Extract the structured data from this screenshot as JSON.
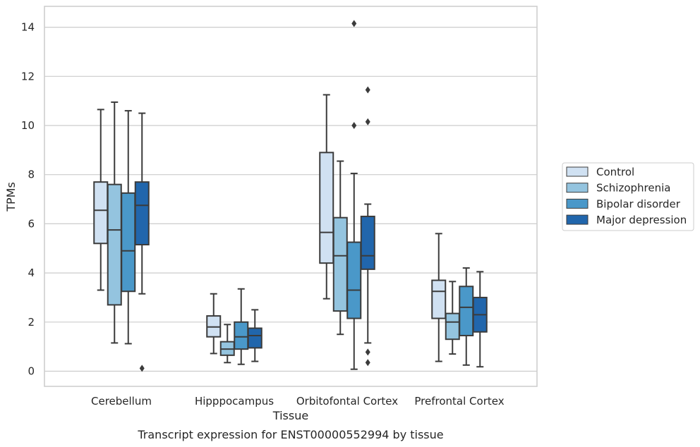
{
  "chart_data": {
    "type": "boxplot",
    "xlabel": "Tissue",
    "ylabel": "TPMs",
    "caption": "Transcript expression for ENST00000552994 by tissue",
    "ylim": [
      -0.6,
      14.8
    ],
    "yticks": [
      0,
      2,
      4,
      6,
      8,
      10,
      12,
      14
    ],
    "grid": true,
    "legend_position": "right",
    "categories": [
      "Cerebellum",
      "Hipppocampus",
      "Orbitofontal Cortex",
      "Prefrontal Cortex"
    ],
    "series": [
      {
        "name": "Control",
        "color": "#d0e1f2",
        "boxes": [
          {
            "whislo": 3.3,
            "q1": 5.2,
            "med": 6.55,
            "q3": 7.7,
            "whishi": 10.65,
            "fliers": []
          },
          {
            "whislo": 0.72,
            "q1": 1.4,
            "med": 1.8,
            "q3": 2.25,
            "whishi": 3.15,
            "fliers": []
          },
          {
            "whislo": 2.95,
            "q1": 4.4,
            "med": 5.65,
            "q3": 8.9,
            "whishi": 11.25,
            "fliers": []
          },
          {
            "whislo": 0.4,
            "q1": 2.15,
            "med": 3.25,
            "q3": 3.7,
            "whishi": 5.6,
            "fliers": []
          }
        ]
      },
      {
        "name": "Schizophrenia",
        "color": "#94c4df",
        "boxes": [
          {
            "whislo": 1.15,
            "q1": 2.7,
            "med": 5.75,
            "q3": 7.6,
            "whishi": 10.95,
            "fliers": []
          },
          {
            "whislo": 0.35,
            "q1": 0.65,
            "med": 0.9,
            "q3": 1.2,
            "whishi": 1.9,
            "fliers": []
          },
          {
            "whislo": 1.5,
            "q1": 2.45,
            "med": 4.7,
            "q3": 6.25,
            "whishi": 8.55,
            "fliers": []
          },
          {
            "whislo": 0.7,
            "q1": 1.3,
            "med": 2.0,
            "q3": 2.35,
            "whishi": 3.65,
            "fliers": []
          }
        ]
      },
      {
        "name": "Bipolar disorder",
        "color": "#4a98c9",
        "boxes": [
          {
            "whislo": 1.12,
            "q1": 3.25,
            "med": 4.9,
            "q3": 7.25,
            "whishi": 10.6,
            "fliers": []
          },
          {
            "whislo": 0.28,
            "q1": 0.9,
            "med": 1.4,
            "q3": 2.0,
            "whishi": 3.35,
            "fliers": []
          },
          {
            "whislo": 0.08,
            "q1": 2.15,
            "med": 3.3,
            "q3": 5.25,
            "whishi": 8.05,
            "fliers": [
              10.0,
              14.15
            ]
          },
          {
            "whislo": 0.25,
            "q1": 1.45,
            "med": 2.6,
            "q3": 3.45,
            "whishi": 4.2,
            "fliers": []
          }
        ]
      },
      {
        "name": "Major depression",
        "color": "#2166ac",
        "boxes": [
          {
            "whislo": 3.15,
            "q1": 5.15,
            "med": 6.75,
            "q3": 7.7,
            "whishi": 10.5,
            "fliers": [
              0.12
            ]
          },
          {
            "whislo": 0.4,
            "q1": 0.95,
            "med": 1.45,
            "q3": 1.75,
            "whishi": 2.5,
            "fliers": []
          },
          {
            "whislo": 1.15,
            "q1": 4.15,
            "med": 4.7,
            "q3": 6.3,
            "whishi": 6.8,
            "fliers": [
              0.35,
              0.78,
              10.15,
              11.45
            ]
          },
          {
            "whislo": 0.18,
            "q1": 1.6,
            "med": 2.3,
            "q3": 3.0,
            "whishi": 4.05,
            "fliers": []
          }
        ]
      }
    ]
  }
}
